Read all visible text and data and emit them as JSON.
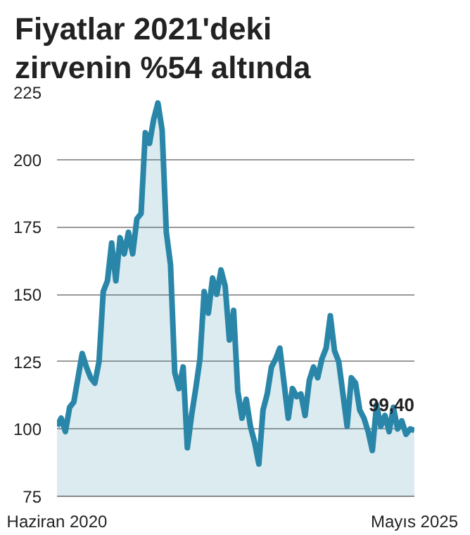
{
  "chart_data": {
    "type": "area",
    "title": "Fiyatlar 2021'deki zirvenin %54 altında",
    "categories": [
      "Haziran 2020",
      null,
      null,
      null,
      null,
      null,
      null,
      null,
      null,
      null,
      null,
      null,
      null,
      null,
      null,
      null,
      null,
      null,
      null,
      null,
      null,
      null,
      null,
      null,
      null,
      null,
      null,
      null,
      null,
      null,
      null,
      null,
      null,
      null,
      null,
      null,
      null,
      null,
      null,
      null,
      null,
      null,
      null,
      null,
      null,
      null,
      null,
      null,
      null,
      null,
      null,
      null,
      null,
      null,
      null,
      null,
      null,
      null,
      null,
      null,
      null,
      null,
      null,
      null,
      null,
      null,
      null,
      null,
      null,
      null,
      null,
      null,
      null,
      null,
      null,
      null,
      null,
      null,
      null,
      null,
      null,
      null,
      null,
      null,
      null,
      "Mayıs 2025"
    ],
    "series": [
      {
        "color": "#2a86a8",
        "values": [
          101,
          104,
          99,
          108,
          110,
          119,
          128,
          123,
          119,
          117,
          125,
          151,
          155,
          169,
          155,
          171,
          165,
          173,
          165,
          178,
          180,
          210,
          206,
          215,
          221,
          211,
          173,
          161,
          121,
          115,
          123,
          93,
          105,
          115,
          126,
          151,
          143,
          156,
          150,
          159,
          153,
          133,
          144,
          114,
          104,
          111,
          101,
          95,
          87,
          107,
          113,
          123,
          126,
          130,
          117,
          104,
          115,
          112,
          113,
          105,
          118,
          123,
          119,
          126,
          130,
          142,
          129,
          125,
          113,
          101,
          119,
          117,
          107,
          104,
          99,
          92,
          109,
          101,
          105,
          99,
          108,
          100,
          103,
          98,
          100,
          99.4
        ],
        "value_labels": [
          null,
          null,
          null,
          null,
          null,
          null,
          null,
          null,
          null,
          null,
          null,
          null,
          null,
          null,
          null,
          null,
          null,
          null,
          null,
          null,
          null,
          null,
          null,
          null,
          null,
          null,
          null,
          null,
          null,
          null,
          null,
          null,
          null,
          null,
          null,
          null,
          null,
          null,
          null,
          null,
          null,
          null,
          null,
          null,
          null,
          null,
          null,
          null,
          null,
          null,
          null,
          null,
          null,
          null,
          null,
          null,
          null,
          null,
          null,
          null,
          null,
          null,
          null,
          null,
          null,
          null,
          null,
          null,
          null,
          null,
          null,
          null,
          null,
          null,
          null,
          null,
          null,
          null,
          null,
          null,
          null,
          null,
          null,
          null,
          null,
          "99,40"
        ]
      }
    ],
    "ylim": [
      75,
      225
    ],
    "yticks": [
      75,
      100,
      125,
      150,
      175,
      200,
      225
    ],
    "grid": "y"
  }
}
